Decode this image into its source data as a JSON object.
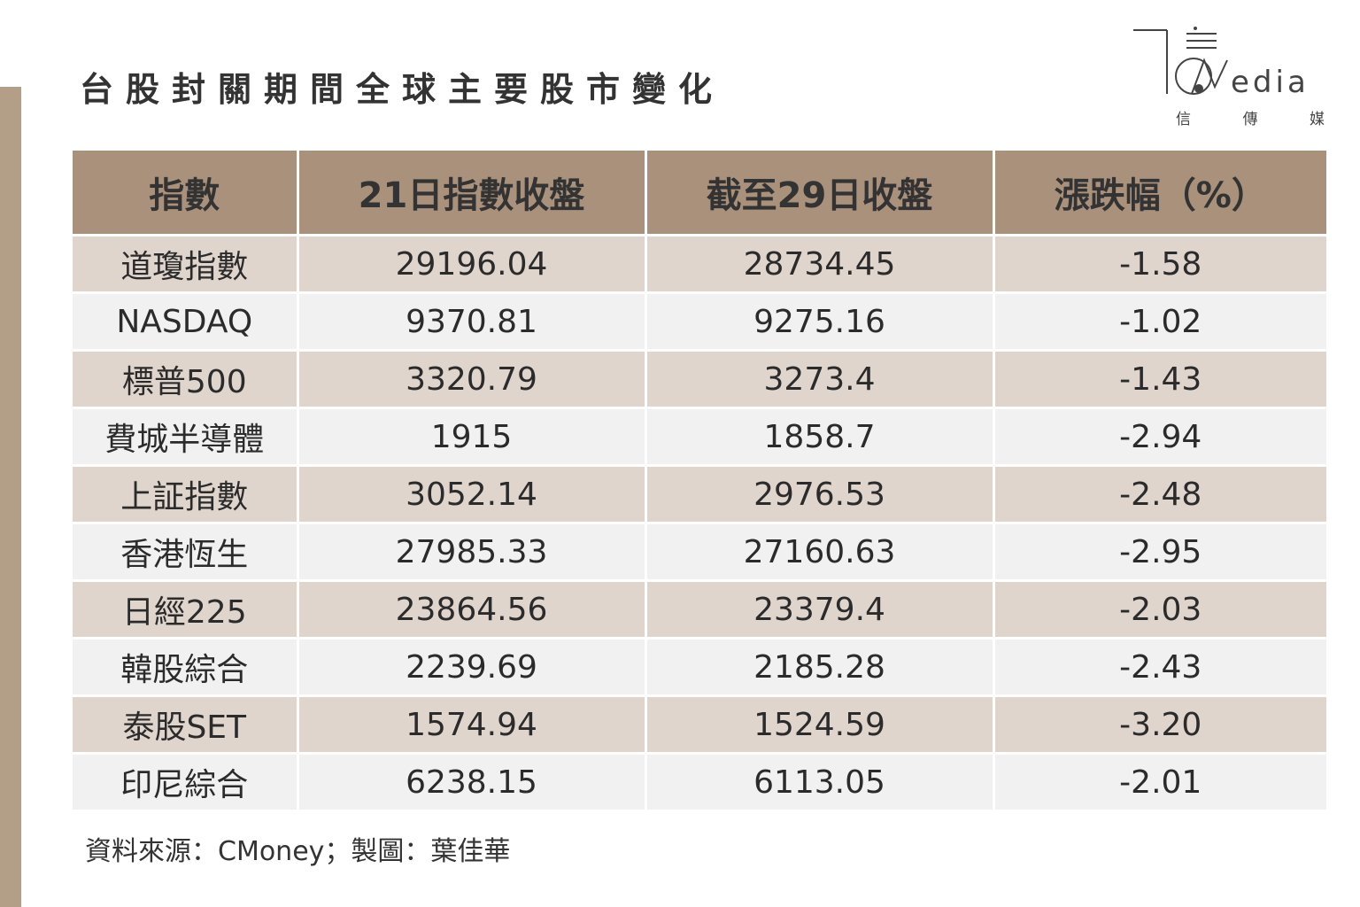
{
  "title": "台股封關期間全球主要股市變化",
  "logo": {
    "text": "TCMedia",
    "sub": [
      "信",
      "傳",
      "媒"
    ]
  },
  "colors": {
    "accent_bar": "#b39e88",
    "header_bg": "#a9917b",
    "row_odd": "#e0d5cd",
    "row_even": "#f1f1f1"
  },
  "chart_data": {
    "type": "table",
    "columns": [
      "指數",
      "21日指數收盤",
      "截至29日收盤",
      "漲跌幅（%）"
    ],
    "rows": [
      [
        "道瓊指數",
        "29196.04",
        "28734.45",
        "-1.58"
      ],
      [
        "NASDAQ",
        "9370.81",
        "9275.16",
        "-1.02"
      ],
      [
        "標普500",
        "3320.79",
        "3273.4",
        "-1.43"
      ],
      [
        "費城半導體",
        "1915",
        "1858.7",
        "-2.94"
      ],
      [
        "上証指數",
        "3052.14",
        "2976.53",
        "-2.48"
      ],
      [
        "香港恆生",
        "27985.33",
        "27160.63",
        "-2.95"
      ],
      [
        "日經225",
        "23864.56",
        "23379.4",
        "-2.03"
      ],
      [
        "韓股綜合",
        "2239.69",
        "2185.28",
        "-2.43"
      ],
      [
        "泰股SET",
        "1574.94",
        "1524.59",
        "-3.20"
      ],
      [
        "印尼綜合",
        "6238.15",
        "6113.05",
        "-2.01"
      ]
    ]
  },
  "source": "資料來源：CMoney；製圖：葉佳華"
}
